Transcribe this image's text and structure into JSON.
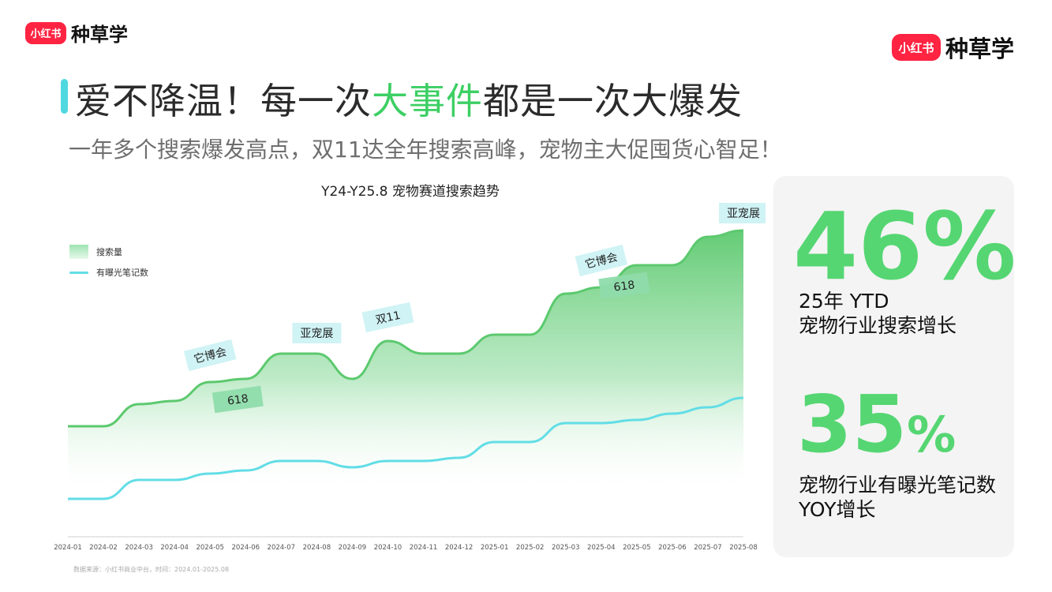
{
  "brand": {
    "badge": "小红书",
    "word": "种草学"
  },
  "header": {
    "title_pre": "爱不降温！每一次",
    "title_hl": "大事件",
    "title_post": "都是一次大爆发",
    "subtitle": "一年多个搜索爆发高点，双11达全年搜索高峰，宠物主大促囤货心智足！",
    "accent_color": "#4fd8e0",
    "highlight_color": "#3ccf63"
  },
  "chart_data": {
    "type": "area",
    "title": "Y24-Y25.8 宠物赛道搜索趋势",
    "x": [
      "2024-01",
      "2024-02",
      "2024-03",
      "2024-04",
      "2024-05",
      "2024-06",
      "2024-07",
      "2024-08",
      "2024-09",
      "2024-10",
      "2024-11",
      "2024-12",
      "2025-01",
      "2025-02",
      "2025-03",
      "2025-04",
      "2025-05",
      "2025-06",
      "2025-07",
      "2025-08"
    ],
    "series": [
      {
        "name": "搜索量",
        "type": "area",
        "color": "#5cc96e",
        "values": [
          35,
          35,
          42,
          43,
          49,
          50,
          58,
          58,
          50,
          62,
          58,
          58,
          64,
          64,
          77,
          79,
          86,
          86,
          95,
          97
        ]
      },
      {
        "name": "有曝光笔记数",
        "type": "line",
        "color": "#62dde6",
        "values": [
          12,
          12,
          18,
          18,
          20,
          21,
          24,
          24,
          22,
          24,
          24,
          25,
          30,
          30,
          36,
          36,
          37,
          39,
          41,
          44
        ]
      }
    ],
    "annotations": [
      {
        "text": "它博会",
        "x": "2024-05",
        "style": "cyan"
      },
      {
        "text": "618",
        "x": "2024-06",
        "style": "green"
      },
      {
        "text": "亚宠展",
        "x": "2024-08",
        "style": "cyan"
      },
      {
        "text": "双11",
        "x": "2024-10",
        "style": "cyan"
      },
      {
        "text": "它博会",
        "x": "2025-04",
        "style": "cyan"
      },
      {
        "text": "618",
        "x": "2025-05",
        "style": "green"
      },
      {
        "text": "亚宠展",
        "x": "2025-08",
        "style": "cyan"
      }
    ],
    "legend_position": "top-left",
    "grid": false
  },
  "source": "数据来源：小红书商业中台，时间：2024.01-2025.08",
  "stats": [
    {
      "value": "46%",
      "desc1": "25年 YTD",
      "desc2": "宠物行业搜索增长"
    },
    {
      "value_num": "35",
      "value_pct": "%",
      "desc1": "宠物行业有曝光笔记数",
      "desc2": "YOY增长"
    }
  ],
  "stat_color": "#55d672"
}
